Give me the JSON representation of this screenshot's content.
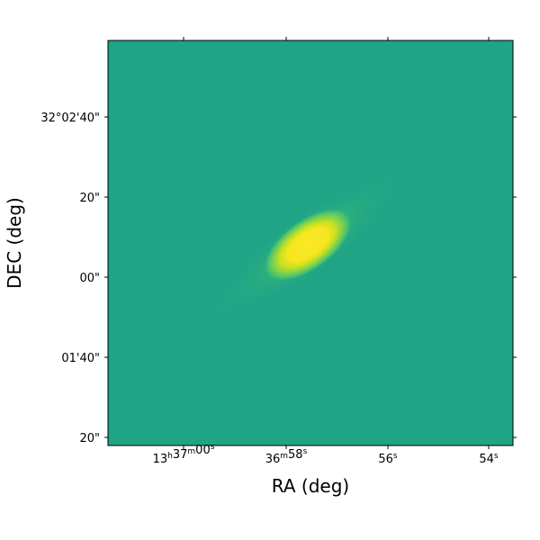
{
  "chart_data": {
    "type": "heatmap",
    "title": "",
    "xlabel": "RA (deg)",
    "ylabel": "DEC (deg)",
    "x_ticks": [
      {
        "base": "13",
        "base_sup": "h",
        "mid": "37",
        "mid_sup": "m",
        "end": "00",
        "end_sup": "s"
      },
      {
        "base": "",
        "base_sup": "",
        "mid": "36",
        "mid_sup": "m",
        "end": "58",
        "end_sup": "s"
      },
      {
        "base": "",
        "base_sup": "",
        "mid": "",
        "mid_sup": "",
        "end": "56",
        "end_sup": "s"
      },
      {
        "base": "",
        "base_sup": "",
        "mid": "",
        "mid_sup": "",
        "end": "54",
        "end_sup": "s"
      }
    ],
    "y_ticks": [
      "32°02'40\"",
      "20\"",
      "00\"",
      "01'40\"",
      "20\""
    ],
    "colormap": {
      "background": "#20a486",
      "low": "#22a784",
      "mid": "#5ec962",
      "high": "#fde725"
    },
    "source": {
      "shape": "elongated elliptical emission",
      "orientation": "lower-left to upper-right",
      "position_angle_deg": 36,
      "peak_near": "RA 13h36m57.6s, DEC 32°02'08\""
    }
  }
}
